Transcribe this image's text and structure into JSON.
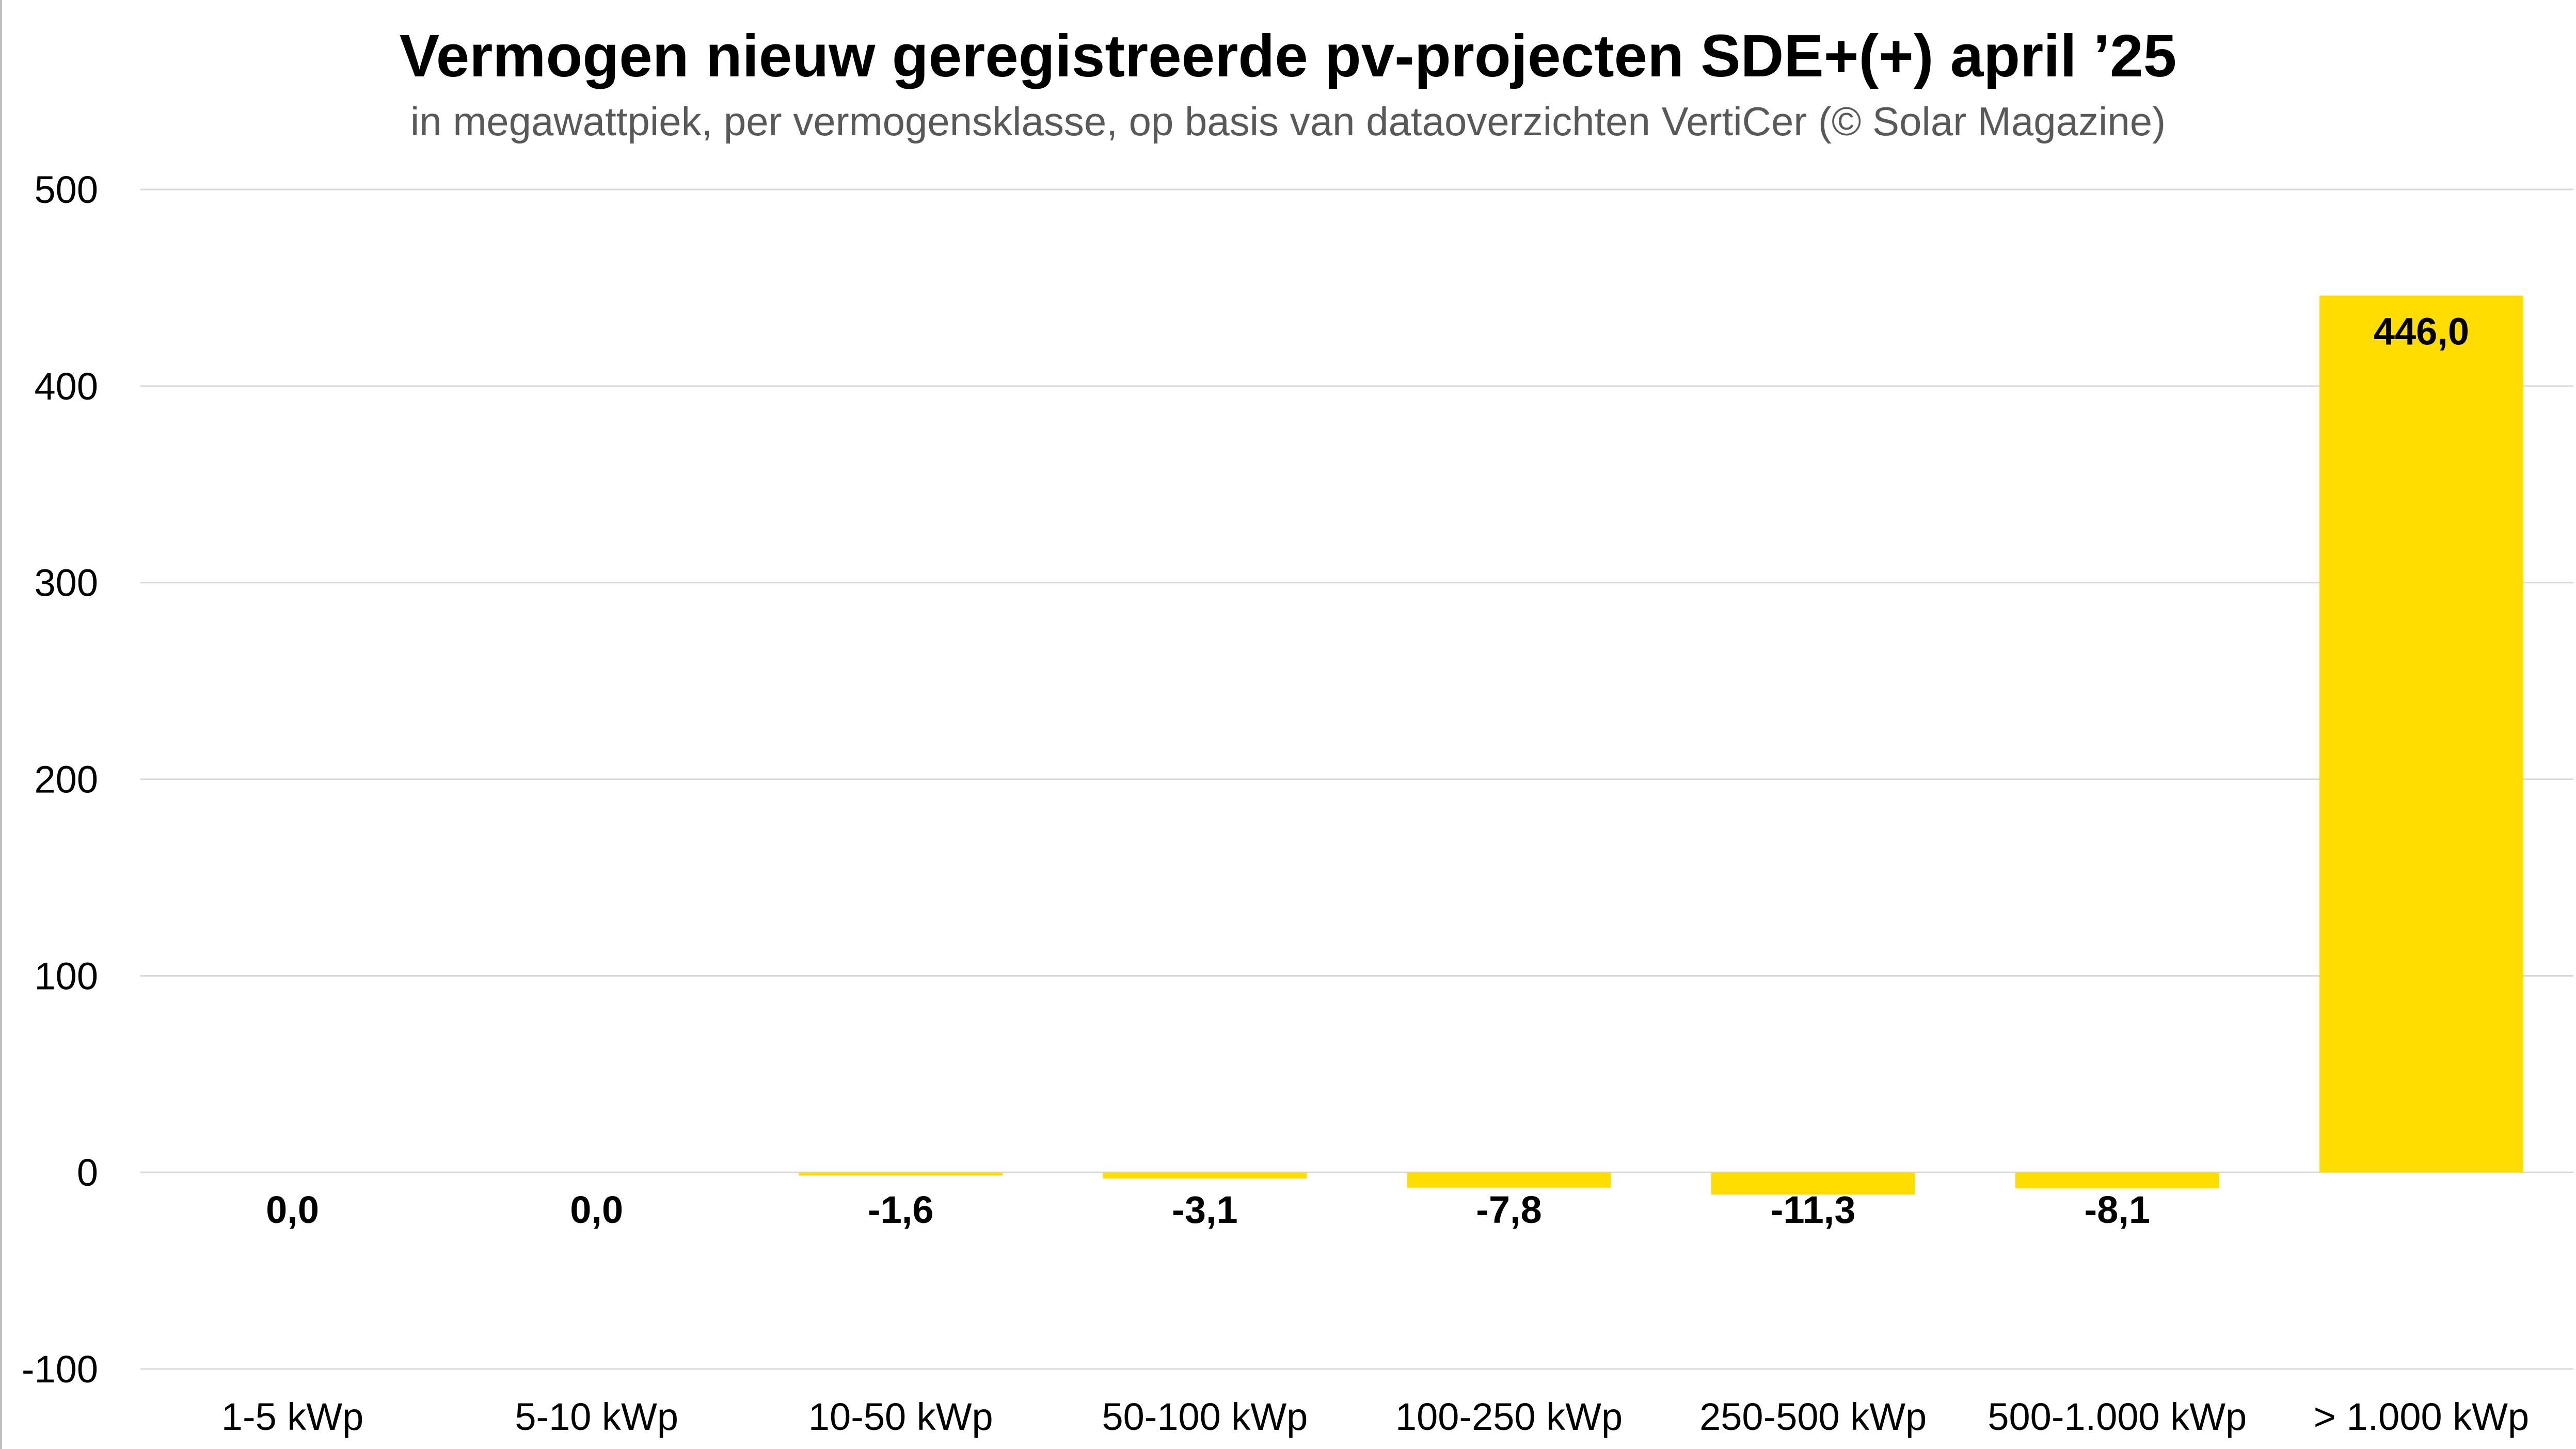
{
  "chart_data": {
    "type": "bar",
    "title": "Vermogen nieuw geregistreerde pv-projecten SDE+(+) april ’25",
    "subtitle": "in megawattpiek, per vermogensklasse, op basis van dataoverzichten VertiCer (© Solar Magazine)",
    "xlabel": "",
    "ylabel": "",
    "categories": [
      "1-5 kWp",
      "5-10 kWp",
      "10-50 kWp",
      "50-100 kWp",
      "100-250 kWp",
      "250-500 kWp",
      "500-1.000 kWp",
      "> 1.000 kWp"
    ],
    "values": [
      0.0,
      0.0,
      -1.6,
      -3.1,
      -7.8,
      -11.3,
      -8.1,
      446.0
    ],
    "value_labels": [
      "0,0",
      "0,0",
      "-1,6",
      "-3,1",
      "-7,8",
      "-11,3",
      "-8,1",
      "446,0"
    ],
    "ylim": [
      -100,
      500
    ],
    "y_ticks": [
      500,
      400,
      300,
      200,
      100,
      0,
      -100
    ],
    "y_tick_labels": [
      "500",
      "400",
      "300",
      "200",
      "100",
      "0",
      "-100"
    ],
    "grid": true,
    "legend": "none",
    "colors": {
      "bar": "#FFDD00",
      "grid": "#D9D9D9",
      "title": "#000000",
      "subtitle": "#595959"
    }
  }
}
